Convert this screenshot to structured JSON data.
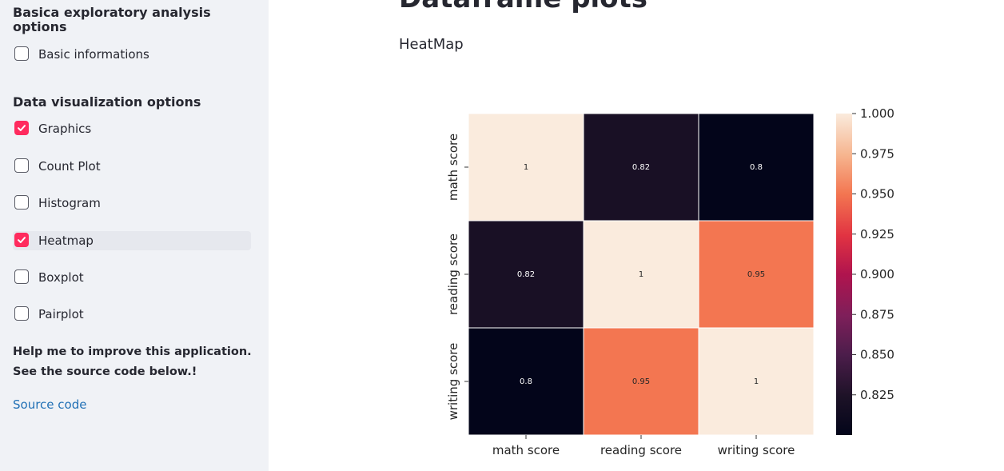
{
  "sidebar": {
    "section1_title_line1": "Basica exploratory analysis",
    "section1_title_line2": "options",
    "section1_items": [
      {
        "label": "Basic informations",
        "checked": false
      }
    ],
    "section2_title": "Data visualization options",
    "section2_items": [
      {
        "label": "Graphics",
        "checked": true
      },
      {
        "label": "Count Plot",
        "checked": false
      },
      {
        "label": "Histogram",
        "checked": false
      },
      {
        "label": "Heatmap",
        "checked": true
      },
      {
        "label": "Boxplot",
        "checked": false
      },
      {
        "label": "Pairplot",
        "checked": false
      }
    ],
    "help_line1": "Help me to improve this application.",
    "help_line2": "See the source code below.!",
    "source_link": "Source code"
  },
  "main": {
    "title": "Dataframe plots",
    "subtitle": "HeatMap"
  },
  "chart_data": {
    "type": "heatmap",
    "x_categories": [
      "math score",
      "reading score",
      "writing score"
    ],
    "y_categories": [
      "math score",
      "reading score",
      "writing score"
    ],
    "values": [
      [
        1,
        0.82,
        0.8
      ],
      [
        0.82,
        1,
        0.95
      ],
      [
        0.8,
        0.95,
        1
      ]
    ],
    "annotations": [
      [
        "1",
        "0.82",
        "0.8"
      ],
      [
        "0.82",
        "1",
        "0.95"
      ],
      [
        "0.8",
        "0.95",
        "1"
      ]
    ],
    "colorbar": {
      "range": [
        0.8,
        1.0
      ],
      "ticks": [
        0.825,
        0.85,
        0.875,
        0.9,
        0.925,
        0.95,
        0.975,
        1.0
      ],
      "tick_labels": [
        "0.825",
        "0.850",
        "0.875",
        "0.900",
        "0.925",
        "0.950",
        "0.975",
        "1.000"
      ]
    },
    "colormap": "rocket",
    "colors": {
      "low": "#03051a",
      "high": "#faebdd"
    }
  }
}
